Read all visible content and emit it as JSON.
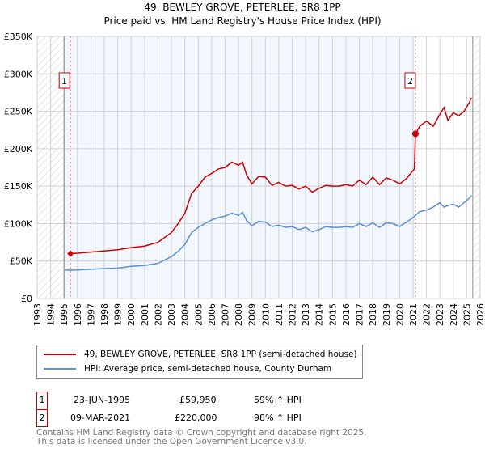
{
  "title": "49, BEWLEY GROVE, PETERLEE, SR8 1PP",
  "subtitle": "Price paid vs. HM Land Registry's House Price Index (HPI)",
  "chart_data": {
    "type": "line",
    "xlim": [
      1993,
      2026
    ],
    "ylim": [
      0,
      350000
    ],
    "xticks": [
      "1993",
      "1994",
      "1995",
      "1996",
      "1997",
      "1998",
      "1999",
      "2000",
      "2001",
      "2002",
      "2003",
      "2004",
      "2005",
      "2006",
      "2007",
      "2008",
      "2009",
      "2010",
      "2011",
      "2012",
      "2013",
      "2014",
      "2015",
      "2016",
      "2017",
      "2018",
      "2019",
      "2020",
      "2021",
      "2022",
      "2023",
      "2024",
      "2025",
      "2026"
    ],
    "yticks": [
      {
        "v": 0,
        "label": "£0"
      },
      {
        "v": 50000,
        "label": "£50K"
      },
      {
        "v": 100000,
        "label": "£100K"
      },
      {
        "v": 150000,
        "label": "£150K"
      },
      {
        "v": 200000,
        "label": "£200K"
      },
      {
        "v": 250000,
        "label": "£250K"
      },
      {
        "v": 300000,
        "label": "£300K"
      },
      {
        "v": 350000,
        "label": "£350K"
      }
    ],
    "series": [
      {
        "name": "49, BEWLEY GROVE, PETERLEE, SR8 1PP (semi-detached house)",
        "color": "#cc0000",
        "x": [
          1995.48,
          1996,
          1997,
          1998,
          1999,
          2000,
          2001,
          2002,
          2003,
          2003.5,
          2004,
          2004.5,
          2005,
          2005.5,
          2006,
          2006.5,
          2007,
          2007.5,
          2008,
          2008.3,
          2008.6,
          2009,
          2009.5,
          2010,
          2010.5,
          2011,
          2011.5,
          2012,
          2012.5,
          2013,
          2013.5,
          2014,
          2014.5,
          2015,
          2015.5,
          2016,
          2016.5,
          2017,
          2017.5,
          2018,
          2018.5,
          2019,
          2019.5,
          2020,
          2020.5,
          2021.1,
          2021.18,
          2021.5,
          2022,
          2022.5,
          2023,
          2023.3,
          2023.6,
          2024,
          2024.4,
          2024.8,
          2025.2,
          2025.35
        ],
        "y": [
          59950,
          60500,
          62000,
          63500,
          65000,
          68000,
          70000,
          75000,
          88000,
          100000,
          114000,
          140000,
          150000,
          162000,
          167000,
          173000,
          175000,
          182000,
          178000,
          182000,
          165000,
          153000,
          163000,
          162000,
          151000,
          155000,
          150000,
          151000,
          146000,
          150000,
          142000,
          147000,
          151000,
          150000,
          150000,
          152000,
          150000,
          158000,
          152000,
          162000,
          152000,
          161000,
          158000,
          153000,
          160000,
          173000,
          220000,
          230000,
          237000,
          230000,
          246000,
          255000,
          238000,
          248000,
          244000,
          250000,
          262000,
          268000
        ]
      },
      {
        "name": "HPI: Average price, semi-detached house, County Durham",
        "color": "#5b8fd4",
        "x": [
          1995,
          1995.48,
          1996,
          1997,
          1998,
          1999,
          2000,
          2001,
          2002,
          2003,
          2003.5,
          2004,
          2004.5,
          2005,
          2005.5,
          2006,
          2006.5,
          2007,
          2007.5,
          2008,
          2008.3,
          2008.6,
          2009,
          2009.5,
          2010,
          2010.5,
          2011,
          2011.5,
          2012,
          2012.5,
          2013,
          2013.5,
          2014,
          2014.5,
          2015,
          2015.5,
          2016,
          2016.5,
          2017,
          2017.5,
          2018,
          2018.5,
          2019,
          2019.5,
          2020,
          2020.5,
          2021,
          2021.5,
          2022,
          2022.5,
          2023,
          2023.3,
          2023.6,
          2024,
          2024.4,
          2024.8,
          2025.2,
          2025.35
        ],
        "y": [
          38000,
          37700,
          38000,
          39000,
          40000,
          40500,
          43000,
          44000,
          47000,
          56000,
          63000,
          72000,
          88000,
          95000,
          100000,
          105000,
          108000,
          110000,
          114000,
          111000,
          115000,
          104000,
          97000,
          103000,
          102000,
          96000,
          98000,
          95000,
          96000,
          92000,
          95000,
          89000,
          92000,
          96000,
          95000,
          95000,
          96000,
          95000,
          100000,
          96000,
          101000,
          95000,
          101000,
          100000,
          96000,
          102000,
          108000,
          116000,
          118000,
          122000,
          128000,
          122000,
          124000,
          126000,
          122000,
          128000,
          134000,
          138000
        ]
      }
    ],
    "sales": [
      {
        "label": "1",
        "x": 1995.48,
        "y": 59950
      },
      {
        "label": "2",
        "x": 2021.18,
        "y": 220000
      }
    ],
    "shaded_range": [
      1995,
      2021.18
    ],
    "hatched_ranges": [
      [
        1993,
        1995
      ],
      [
        2025.5,
        2026
      ]
    ]
  },
  "legend": {
    "red": "49, BEWLEY GROVE, PETERLEE, SR8 1PP (semi-detached house)",
    "blue": "HPI: Average price, semi-detached house, County Durham"
  },
  "sales_table": [
    {
      "num": "1",
      "date": "23-JUN-1995",
      "price": "£59,950",
      "hpi": "59% ↑ HPI"
    },
    {
      "num": "2",
      "date": "09-MAR-2021",
      "price": "£220,000",
      "hpi": "98% ↑ HPI"
    }
  ],
  "footer": {
    "line1": "Contains HM Land Registry data © Crown copyright and database right 2025.",
    "line2": "This data is licensed under the Open Government Licence v3.0."
  }
}
